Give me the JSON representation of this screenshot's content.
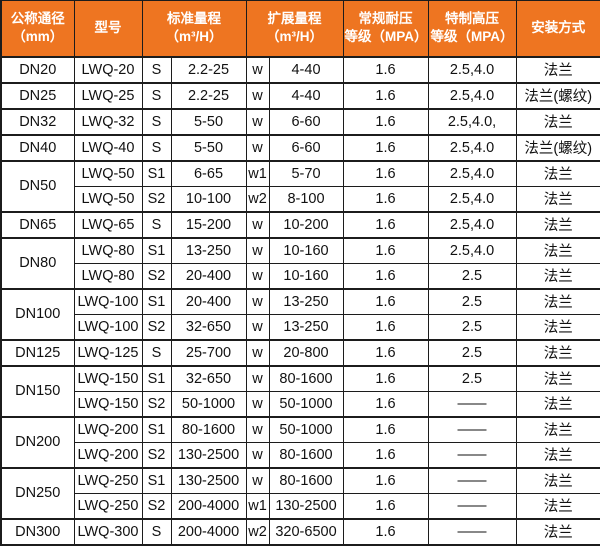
{
  "colors": {
    "header_bg": "#EE7521",
    "header_top_strip": "#F5A35F",
    "header_text": "#FFFFFF",
    "border": "#1C1C1C",
    "body_text": "#111111",
    "body_bg": "#FFFFFF"
  },
  "header": {
    "nominal_diameter": {
      "line1": "公称通径",
      "line2": "（mm）"
    },
    "model": "型号",
    "standard_range": {
      "line1": "标准量程",
      "line2": "（m³/H）"
    },
    "extended_range": {
      "line1": "扩展量程",
      "line2": "（m³/H）"
    },
    "normal_pressure": {
      "line1": "常规耐压",
      "line2": "等级（MPA）"
    },
    "high_pressure": {
      "line1": "特制高压",
      "line2": "等级（MPA）"
    },
    "installation": "安装方式"
  },
  "groups": [
    {
      "dn": "DN20",
      "rows": [
        {
          "model": "LWQ-20",
          "s": "S",
          "std": "2.2-25",
          "w": "w",
          "ext": "4-40",
          "normal": "1.6",
          "high": "2.5,4.0",
          "install": "法兰"
        }
      ]
    },
    {
      "dn": "DN25",
      "rows": [
        {
          "model": "LWQ-25",
          "s": "S",
          "std": "2.2-25",
          "w": "w",
          "ext": "4-40",
          "normal": "1.6",
          "high": "2.5,4.0",
          "install": "法兰(螺纹)"
        }
      ]
    },
    {
      "dn": "DN32",
      "rows": [
        {
          "model": "LWQ-32",
          "s": "S",
          "std": "5-50",
          "w": "w",
          "ext": "6-60",
          "normal": "1.6",
          "high": "2.5,4.0,",
          "install": "法兰"
        }
      ]
    },
    {
      "dn": "DN40",
      "rows": [
        {
          "model": "LWQ-40",
          "s": "S",
          "std": "5-50",
          "w": "w",
          "ext": "6-60",
          "normal": "1.6",
          "high": "2.5,4.0",
          "install": "法兰(螺纹)"
        }
      ]
    },
    {
      "dn": "DN50",
      "rows": [
        {
          "model": "LWQ-50",
          "s": "S1",
          "std": "6-65",
          "w": "w1",
          "ext": "5-70",
          "normal": "1.6",
          "high": "2.5,4.0",
          "install": "法兰"
        },
        {
          "model": "LWQ-50",
          "s": "S2",
          "std": "10-100",
          "w": "w2",
          "ext": "8-100",
          "normal": "1.6",
          "high": "2.5,4.0",
          "install": "法兰"
        }
      ]
    },
    {
      "dn": "DN65",
      "rows": [
        {
          "model": "LWQ-65",
          "s": "S",
          "std": "15-200",
          "w": "w",
          "ext": "10-200",
          "normal": "1.6",
          "high": "2.5,4.0",
          "install": "法兰"
        }
      ]
    },
    {
      "dn": "DN80",
      "rows": [
        {
          "model": "LWQ-80",
          "s": "S1",
          "std": "13-250",
          "w": "w",
          "ext": "10-160",
          "normal": "1.6",
          "high": "2.5,4.0",
          "install": "法兰"
        },
        {
          "model": "LWQ-80",
          "s": "S2",
          "std": "20-400",
          "w": "w",
          "ext": "10-160",
          "normal": "1.6",
          "high": "2.5",
          "install": "法兰"
        }
      ]
    },
    {
      "dn": "DN100",
      "rows": [
        {
          "model": "LWQ-100",
          "s": "S1",
          "std": "20-400",
          "w": "w",
          "ext": "13-250",
          "normal": "1.6",
          "high": "2.5",
          "install": "法兰"
        },
        {
          "model": "LWQ-100",
          "s": "S2",
          "std": "32-650",
          "w": "w",
          "ext": "13-250",
          "normal": "1.6",
          "high": "2.5",
          "install": "法兰"
        }
      ]
    },
    {
      "dn": "DN125",
      "rows": [
        {
          "model": "LWQ-125",
          "s": "S",
          "std": "25-700",
          "w": "w",
          "ext": "20-800",
          "normal": "1.6",
          "high": "2.5",
          "install": "法兰"
        }
      ]
    },
    {
      "dn": "DN150",
      "rows": [
        {
          "model": "LWQ-150",
          "s": "S1",
          "std": "32-650",
          "w": "w",
          "ext": "80-1600",
          "normal": "1.6",
          "high": "2.5",
          "install": "法兰"
        },
        {
          "model": "LWQ-150",
          "s": "S2",
          "std": "50-1000",
          "w": "w",
          "ext": "50-1000",
          "normal": "1.6",
          "high": "——",
          "install": "法兰"
        }
      ]
    },
    {
      "dn": "DN200",
      "rows": [
        {
          "model": "LWQ-200",
          "s": "S1",
          "std": "80-1600",
          "w": "w",
          "ext": "50-1000",
          "normal": "1.6",
          "high": "——",
          "install": "法兰"
        },
        {
          "model": "LWQ-200",
          "s": "S2",
          "std": "130-2500",
          "w": "w",
          "ext": "80-1600",
          "normal": "1.6",
          "high": "——",
          "install": "法兰"
        }
      ]
    },
    {
      "dn": "DN250",
      "rows": [
        {
          "model": "LWQ-250",
          "s": "S1",
          "std": "130-2500",
          "w": "w",
          "ext": "80-1600",
          "normal": "1.6",
          "high": "——",
          "install": "法兰"
        },
        {
          "model": "LWQ-250",
          "s": "S2",
          "std": "200-4000",
          "w": "w1",
          "ext": "130-2500",
          "normal": "1.6",
          "high": "——",
          "install": "法兰"
        }
      ]
    },
    {
      "dn": "DN300",
      "rows": [
        {
          "model": "LWQ-300",
          "s": "S",
          "std": "200-4000",
          "w": "w2",
          "ext": "320-6500",
          "normal": "1.6",
          "high": "——",
          "install": "法兰"
        }
      ]
    }
  ],
  "column_keys": [
    "model",
    "s",
    "std",
    "w",
    "ext",
    "normal",
    "high",
    "install"
  ],
  "column_names": [
    "cell-model",
    "cell-standard-grade",
    "cell-standard-range",
    "cell-extended-grade",
    "cell-extended-range",
    "cell-normal-pressure",
    "cell-high-pressure",
    "cell-installation"
  ]
}
